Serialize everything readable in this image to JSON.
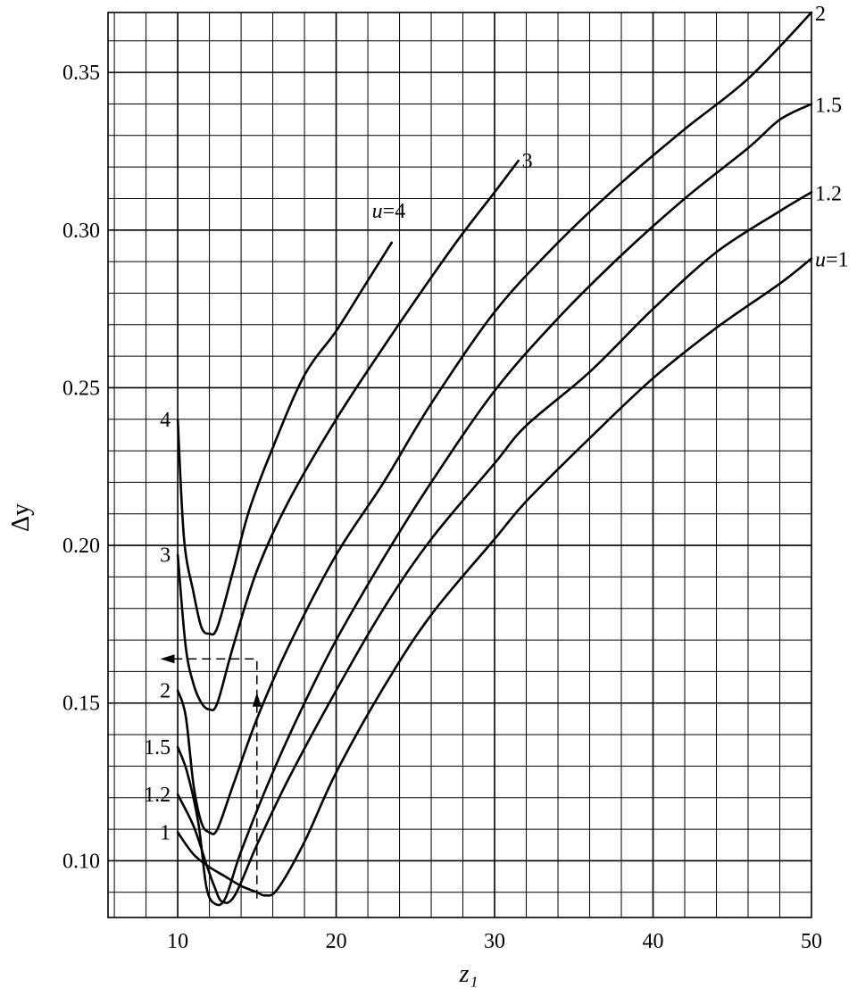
{
  "chart_data": {
    "type": "line",
    "title": "",
    "xlabel": "z₁",
    "ylabel": "Δy",
    "xlim": [
      5.6,
      50
    ],
    "ylim": [
      0.082,
      0.369
    ],
    "x_ticks": [
      10,
      20,
      30,
      40,
      50
    ],
    "x_tick_labels": [
      "10",
      "20",
      "30",
      "40",
      "50"
    ],
    "y_ticks": [
      0.1,
      0.15,
      0.2,
      0.25,
      0.3,
      0.35
    ],
    "y_tick_labels": [
      "0.10",
      "0.15",
      "0.20",
      "0.25",
      "0.30",
      "0.35"
    ],
    "grid": true,
    "series": [
      {
        "name": "u=4",
        "label_end": "u=4",
        "label_start": "4",
        "points": [
          [
            10,
            0.24
          ],
          [
            10.4,
            0.202
          ],
          [
            11,
            0.185
          ],
          [
            11.5,
            0.174
          ],
          [
            12,
            0.172
          ],
          [
            12.5,
            0.174
          ],
          [
            13.5,
            0.192
          ],
          [
            14.5,
            0.211
          ],
          [
            16,
            0.231
          ],
          [
            18,
            0.254
          ],
          [
            20,
            0.268
          ],
          [
            22,
            0.284
          ],
          [
            23.5,
            0.296
          ]
        ]
      },
      {
        "name": "3",
        "label_end": "3",
        "label_start": "3",
        "points": [
          [
            10,
            0.197
          ],
          [
            10.5,
            0.168
          ],
          [
            11,
            0.156
          ],
          [
            11.5,
            0.15
          ],
          [
            12,
            0.148
          ],
          [
            12.5,
            0.15
          ],
          [
            13.5,
            0.168
          ],
          [
            15,
            0.192
          ],
          [
            17,
            0.214
          ],
          [
            20,
            0.24
          ],
          [
            23,
            0.263
          ],
          [
            26,
            0.285
          ],
          [
            28,
            0.299
          ],
          [
            30,
            0.312
          ],
          [
            31.5,
            0.322
          ]
        ]
      },
      {
        "name": "2",
        "label_end": "2",
        "label_start": "2",
        "points": [
          [
            10,
            0.154
          ],
          [
            10.5,
            0.146
          ],
          [
            11,
            0.124
          ],
          [
            11.5,
            0.112
          ],
          [
            12,
            0.109
          ],
          [
            12.5,
            0.11
          ],
          [
            13.5,
            0.124
          ],
          [
            15,
            0.145
          ],
          [
            17,
            0.168
          ],
          [
            20,
            0.197
          ],
          [
            23,
            0.22
          ],
          [
            26,
            0.245
          ],
          [
            30,
            0.274
          ],
          [
            34,
            0.296
          ],
          [
            38,
            0.315
          ],
          [
            42,
            0.332
          ],
          [
            46,
            0.348
          ],
          [
            50,
            0.369
          ]
        ]
      },
      {
        "name": "1.5",
        "label_end": "1.5",
        "label_start": "1.5",
        "points": [
          [
            10,
            0.136
          ],
          [
            10.6,
            0.128
          ],
          [
            11.3,
            0.112
          ],
          [
            11.8,
            0.092
          ],
          [
            12.3,
            0.0865
          ],
          [
            13,
            0.088
          ],
          [
            14,
            0.103
          ],
          [
            16,
            0.128
          ],
          [
            18,
            0.15
          ],
          [
            20,
            0.17
          ],
          [
            23,
            0.196
          ],
          [
            26,
            0.22
          ],
          [
            30,
            0.249
          ],
          [
            34,
            0.272
          ],
          [
            38,
            0.292
          ],
          [
            42,
            0.31
          ],
          [
            46,
            0.326
          ],
          [
            48,
            0.335
          ],
          [
            50,
            0.34
          ]
        ]
      },
      {
        "name": "1.2",
        "label_end": "1.2",
        "label_start": "1.2",
        "points": [
          [
            10,
            0.121
          ],
          [
            11,
            0.111
          ],
          [
            11.8,
            0.099
          ],
          [
            12.3,
            0.092
          ],
          [
            12.8,
            0.087
          ],
          [
            13.6,
            0.089
          ],
          [
            15,
            0.105
          ],
          [
            17,
            0.126
          ],
          [
            20,
            0.154
          ],
          [
            23,
            0.18
          ],
          [
            26,
            0.202
          ],
          [
            30,
            0.226
          ],
          [
            32,
            0.238
          ],
          [
            36,
            0.255
          ],
          [
            40,
            0.275
          ],
          [
            44,
            0.293
          ],
          [
            48,
            0.306
          ],
          [
            50,
            0.312
          ]
        ]
      },
      {
        "name": "u=1",
        "label_end": "u=1",
        "label_start": "1",
        "points": [
          [
            10,
            0.109
          ],
          [
            11,
            0.102
          ],
          [
            12,
            0.098
          ],
          [
            13,
            0.095
          ],
          [
            14,
            0.092
          ],
          [
            15,
            0.09
          ],
          [
            15.5,
            0.089
          ],
          [
            16.3,
            0.091
          ],
          [
            18,
            0.106
          ],
          [
            20,
            0.128
          ],
          [
            23,
            0.155
          ],
          [
            26,
            0.178
          ],
          [
            30,
            0.202
          ],
          [
            32,
            0.214
          ],
          [
            36,
            0.234
          ],
          [
            40,
            0.253
          ],
          [
            44,
            0.269
          ],
          [
            48,
            0.283
          ],
          [
            50,
            0.291
          ]
        ]
      }
    ],
    "annotations": [
      {
        "type": "guide",
        "description": "dashed arrow",
        "path": [
          [
            15,
            0.088
          ],
          [
            15,
            0.164
          ],
          [
            9.1,
            0.164
          ]
        ]
      }
    ]
  }
}
